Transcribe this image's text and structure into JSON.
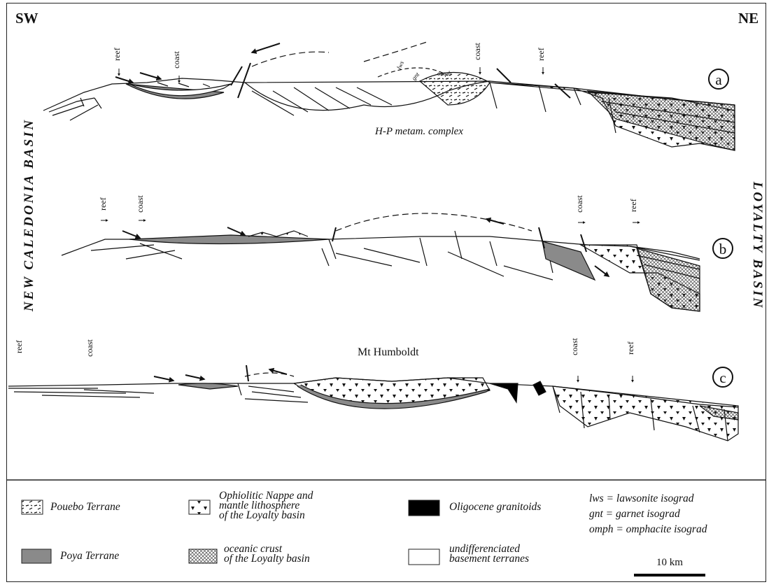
{
  "directions": {
    "sw": "SW",
    "ne": "NE"
  },
  "basins": {
    "left": "NEW CALEDONIA BASIN",
    "right": "LOYALTY BASIN"
  },
  "sections": [
    {
      "id": "a",
      "labels": {
        "reef_left": "reef",
        "coast_left": "coast",
        "coast_right": "coast",
        "reef_right": "reef",
        "complex": "H-P metam. complex",
        "lws": "lws",
        "gnt": "gnt",
        "omph": "omph"
      }
    },
    {
      "id": "b",
      "labels": {
        "reef_left": "reef",
        "coast_left": "coast",
        "coast_right": "coast",
        "reef_right": "reef"
      }
    },
    {
      "id": "c",
      "labels": {
        "reef_left": "reef",
        "coast_left": "coast",
        "peak": "Mt Humboldt",
        "coast_right": "coast",
        "reef_right": "reef"
      }
    }
  ],
  "legend": {
    "items": [
      {
        "key": "pouebo",
        "label": "Pouebo Terrane"
      },
      {
        "key": "ophiolite",
        "label": "Ophiolitic Nappe and\nmantle lithosphere\nof the Loyalty basin"
      },
      {
        "key": "granitoids",
        "label": "Oligocene granitoids"
      },
      {
        "key": "poya",
        "label": "Poya Terrane"
      },
      {
        "key": "oceanic",
        "label": " oceanic crust\nof the Loyalty basin"
      },
      {
        "key": "basement",
        "label": "undifferenciated\nbasement terranes"
      }
    ],
    "abbreviations": [
      "lws = lawsonite isograd",
      "gnt = garnet isograd",
      "omph = omphacite isograd"
    ],
    "scale_label": "10 km"
  },
  "colors": {
    "poya": "#8a8a8a",
    "granitoids": "#000000",
    "line": "#111111"
  }
}
